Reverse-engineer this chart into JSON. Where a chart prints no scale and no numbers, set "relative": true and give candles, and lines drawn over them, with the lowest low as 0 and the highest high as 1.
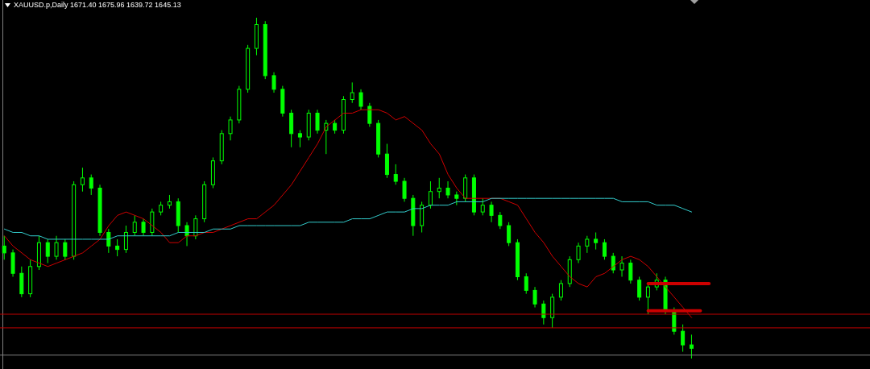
{
  "chart_data": {
    "type": "candlestick",
    "title": "XAUUSD.p,Daily  1671.40 1675.96 1639.72 1645.13",
    "relative": true,
    "categories": [
      null,
      null,
      null,
      null,
      null,
      null,
      null,
      null,
      null,
      null,
      null,
      null,
      null,
      null,
      null,
      null,
      null,
      null,
      null,
      null,
      null,
      null,
      null,
      null,
      null,
      null,
      null,
      null,
      null,
      null,
      null,
      null,
      null,
      null,
      null,
      null,
      null,
      null,
      null,
      null,
      null,
      null,
      null,
      null,
      null,
      null,
      null,
      null,
      null,
      null,
      null,
      null,
      null,
      null,
      null,
      null,
      null,
      null,
      null,
      null,
      null,
      null,
      null,
      null,
      null,
      null,
      null,
      null,
      null,
      null,
      null,
      null,
      null,
      null,
      null,
      null,
      null,
      null,
      null,
      null,
      null,
      null,
      null,
      null,
      null,
      null,
      null,
      null,
      null,
      null,
      null,
      null,
      null,
      null,
      null,
      null,
      null,
      null,
      null,
      null
    ],
    "ohlc": [
      [
        0.33,
        0.36,
        0.29,
        0.31
      ],
      [
        0.31,
        0.32,
        0.24,
        0.25
      ],
      [
        0.25,
        0.27,
        0.18,
        0.19
      ],
      [
        0.19,
        0.29,
        0.18,
        0.27
      ],
      [
        0.27,
        0.36,
        0.26,
        0.34
      ],
      [
        0.34,
        0.35,
        0.28,
        0.3
      ],
      [
        0.3,
        0.36,
        0.29,
        0.34
      ],
      [
        0.34,
        0.35,
        0.29,
        0.3
      ],
      [
        0.3,
        0.52,
        0.29,
        0.51
      ],
      [
        0.51,
        0.56,
        0.49,
        0.53
      ],
      [
        0.53,
        0.54,
        0.48,
        0.5
      ],
      [
        0.5,
        0.51,
        0.36,
        0.37
      ],
      [
        0.37,
        0.38,
        0.31,
        0.33
      ],
      [
        0.33,
        0.35,
        0.3,
        0.32
      ],
      [
        0.32,
        0.39,
        0.31,
        0.37
      ],
      [
        0.37,
        0.42,
        0.36,
        0.4
      ],
      [
        0.4,
        0.41,
        0.36,
        0.37
      ],
      [
        0.37,
        0.44,
        0.36,
        0.43
      ],
      [
        0.43,
        0.46,
        0.42,
        0.45
      ],
      [
        0.45,
        0.48,
        0.44,
        0.46
      ],
      [
        0.46,
        0.47,
        0.37,
        0.39
      ],
      [
        0.39,
        0.4,
        0.33,
        0.36
      ],
      [
        0.36,
        0.42,
        0.35,
        0.41
      ],
      [
        0.41,
        0.52,
        0.4,
        0.51
      ],
      [
        0.51,
        0.59,
        0.5,
        0.58
      ],
      [
        0.58,
        0.67,
        0.57,
        0.66
      ],
      [
        0.66,
        0.71,
        0.64,
        0.7
      ],
      [
        0.7,
        0.8,
        0.69,
        0.79
      ],
      [
        0.79,
        0.92,
        0.78,
        0.91
      ],
      [
        0.91,
        1,
        0.89,
        0.98
      ],
      [
        0.98,
        0.99,
        0.82,
        0.83
      ],
      [
        0.83,
        0.84,
        0.78,
        0.79
      ],
      [
        0.79,
        0.8,
        0.71,
        0.72
      ],
      [
        0.72,
        0.73,
        0.62,
        0.66
      ],
      [
        0.66,
        0.67,
        0.62,
        0.65
      ],
      [
        0.65,
        0.73,
        0.64,
        0.72
      ],
      [
        0.72,
        0.73,
        0.66,
        0.67
      ],
      [
        0.67,
        0.7,
        0.6,
        0.69
      ],
      [
        0.69,
        0.7,
        0.66,
        0.67
      ],
      [
        0.67,
        0.77,
        0.66,
        0.76
      ],
      [
        0.76,
        0.81,
        0.75,
        0.78
      ],
      [
        0.78,
        0.79,
        0.73,
        0.74
      ],
      [
        0.74,
        0.75,
        0.68,
        0.69
      ],
      [
        0.69,
        0.7,
        0.59,
        0.6
      ],
      [
        0.6,
        0.63,
        0.53,
        0.54
      ],
      [
        0.54,
        0.57,
        0.51,
        0.52
      ],
      [
        0.52,
        0.53,
        0.46,
        0.47
      ],
      [
        0.47,
        0.48,
        0.36,
        0.39
      ],
      [
        0.39,
        0.46,
        0.37,
        0.45
      ],
      [
        0.45,
        0.52,
        0.44,
        0.49
      ],
      [
        0.49,
        0.53,
        0.47,
        0.5
      ],
      [
        0.5,
        0.52,
        0.47,
        0.48
      ],
      [
        0.48,
        0.49,
        0.45,
        0.47
      ],
      [
        0.47,
        0.54,
        0.46,
        0.53
      ],
      [
        0.53,
        0.54,
        0.42,
        0.43
      ],
      [
        0.43,
        0.47,
        0.42,
        0.45
      ],
      [
        0.45,
        0.46,
        0.4,
        0.42
      ],
      [
        0.42,
        0.43,
        0.38,
        0.39
      ],
      [
        0.39,
        0.4,
        0.33,
        0.34
      ],
      [
        0.34,
        0.35,
        0.23,
        0.24
      ],
      [
        0.24,
        0.25,
        0.19,
        0.2
      ],
      [
        0.2,
        0.21,
        0.15,
        0.16
      ],
      [
        0.16,
        0.17,
        0.1,
        0.12
      ],
      [
        0.12,
        0.19,
        0.09,
        0.18
      ],
      [
        0.18,
        0.23,
        0.17,
        0.22
      ],
      [
        0.22,
        0.3,
        0.21,
        0.29
      ],
      [
        0.29,
        0.34,
        0.28,
        0.33
      ],
      [
        0.33,
        0.36,
        0.31,
        0.35
      ],
      [
        0.35,
        0.37,
        0.32,
        0.34
      ],
      [
        0.34,
        0.35,
        0.29,
        0.3
      ],
      [
        0.3,
        0.31,
        0.25,
        0.26
      ],
      [
        0.26,
        0.3,
        0.24,
        0.28
      ],
      [
        0.28,
        0.29,
        0.22,
        0.23
      ],
      [
        0.23,
        0.24,
        0.17,
        0.18
      ],
      [
        0.18,
        0.22,
        0.13,
        0.21
      ],
      [
        0.21,
        0.25,
        0.2,
        0.23
      ],
      [
        0.23,
        0.24,
        0.13,
        0.14
      ],
      [
        0.14,
        0.15,
        0.07,
        0.08
      ],
      [
        0.08,
        0.1,
        0.02,
        0.04
      ],
      [
        0.04,
        0.07,
        0,
        0.03
      ],
      null,
      null,
      null,
      null,
      null,
      null,
      null,
      null,
      null,
      null,
      null,
      null,
      null,
      null,
      null,
      null,
      null,
      null,
      null,
      null
    ],
    "series": [
      {
        "type": "line",
        "color": "#d00000",
        "values": [
          0.36,
          0.33,
          0.31,
          0.29,
          0.28,
          0.27,
          0.28,
          0.29,
          0.3,
          0.31,
          0.33,
          0.35,
          0.39,
          0.42,
          0.43,
          0.42,
          0.41,
          0.39,
          0.37,
          0.34,
          0.34,
          0.36,
          0.36,
          0.37,
          0.37,
          0.38,
          0.39,
          0.4,
          0.41,
          0.41,
          0.43,
          0.45,
          0.48,
          0.51,
          0.55,
          0.59,
          0.63,
          0.68,
          0.7,
          0.72,
          0.72,
          0.73,
          0.73,
          0.73,
          0.72,
          0.7,
          0.71,
          0.69,
          0.67,
          0.63,
          0.6,
          0.54,
          0.5,
          0.47,
          0.47,
          0.47,
          0.47,
          0.47,
          0.46,
          0.45,
          0.41,
          0.37,
          0.34,
          0.3,
          0.27,
          0.24,
          0.22,
          0.21,
          0.24,
          0.25,
          0.27,
          0.29,
          0.3,
          0.29,
          0.27,
          0.24,
          0.21,
          0.18,
          0.15,
          0.12,
          null,
          null,
          null,
          null,
          null,
          null,
          null,
          null,
          null,
          null,
          null,
          null,
          null,
          null,
          null,
          null,
          null,
          null,
          null,
          null
        ]
      },
      {
        "type": "line",
        "color": "#33cccc",
        "values": [
          0.38,
          0.37,
          0.37,
          0.36,
          0.36,
          0.35,
          0.35,
          0.35,
          0.35,
          0.35,
          0.35,
          0.35,
          0.35,
          0.36,
          0.36,
          0.36,
          0.36,
          0.36,
          0.36,
          0.36,
          0.37,
          0.37,
          0.37,
          0.37,
          0.38,
          0.38,
          0.38,
          0.39,
          0.39,
          0.39,
          0.39,
          0.39,
          0.39,
          0.39,
          0.39,
          0.4,
          0.4,
          0.4,
          0.4,
          0.4,
          0.41,
          0.41,
          0.41,
          0.42,
          0.43,
          0.43,
          0.43,
          0.44,
          0.44,
          0.45,
          0.45,
          0.45,
          0.46,
          0.46,
          0.46,
          0.46,
          0.47,
          0.47,
          0.47,
          0.47,
          0.47,
          0.47,
          0.47,
          0.47,
          0.47,
          0.47,
          0.47,
          0.47,
          0.47,
          0.47,
          0.47,
          0.46,
          0.46,
          0.46,
          0.46,
          0.45,
          0.45,
          0.45,
          0.44,
          0.43,
          null,
          null,
          null,
          null,
          null,
          null,
          null,
          null,
          null,
          null,
          null,
          null,
          null,
          null,
          null,
          null,
          null,
          null,
          null,
          null
        ]
      },
      {
        "type": "line",
        "color": "#cc0000",
        "values": [
          null,
          null,
          null,
          null,
          null,
          null,
          null,
          null,
          null,
          null,
          null,
          null,
          null,
          null,
          null,
          null,
          null,
          null,
          null,
          null,
          null,
          null,
          null,
          null,
          null,
          null,
          null,
          null,
          null,
          null,
          null,
          null,
          null,
          null,
          null,
          null,
          null,
          null,
          null,
          null,
          null,
          null,
          null,
          null,
          null,
          null,
          null,
          null,
          null,
          null,
          null,
          null,
          null,
          null,
          null,
          null,
          null,
          null,
          null,
          null,
          null,
          null,
          null,
          null,
          null,
          null,
          null,
          null,
          null,
          null,
          null,
          null,
          null,
          null,
          0.22,
          0.22,
          0.22,
          0.22,
          0.22,
          0.22,
          0.22,
          0.22,
          null,
          null,
          null,
          null,
          null,
          null,
          null,
          null,
          null,
          null,
          null,
          null,
          null,
          null,
          null,
          null,
          null,
          null
        ]
      },
      {
        "type": "line",
        "color": "#cc0000",
        "values": [
          null,
          null,
          null,
          null,
          null,
          null,
          null,
          null,
          null,
          null,
          null,
          null,
          null,
          null,
          null,
          null,
          null,
          null,
          null,
          null,
          null,
          null,
          null,
          null,
          null,
          null,
          null,
          null,
          null,
          null,
          null,
          null,
          null,
          null,
          null,
          null,
          null,
          null,
          null,
          null,
          null,
          null,
          null,
          null,
          null,
          null,
          null,
          null,
          null,
          null,
          null,
          null,
          null,
          null,
          null,
          null,
          null,
          null,
          null,
          null,
          null,
          null,
          null,
          null,
          null,
          null,
          null,
          null,
          null,
          null,
          null,
          null,
          null,
          null,
          0.14,
          0.14,
          0.14,
          0.14,
          0.14,
          0.14,
          0.14,
          null,
          null,
          null,
          null,
          null,
          null,
          null,
          null,
          null,
          null,
          null,
          null,
          null,
          null,
          null,
          null,
          null,
          null,
          null
        ]
      }
    ],
    "ref_lines": [
      {
        "axis": "y",
        "value": 0.13,
        "color": "#c00000"
      },
      {
        "axis": "y",
        "value": 0.09,
        "color": "#c00000"
      },
      {
        "axis": "y",
        "value": 0.01,
        "color": "#808080"
      }
    ]
  }
}
